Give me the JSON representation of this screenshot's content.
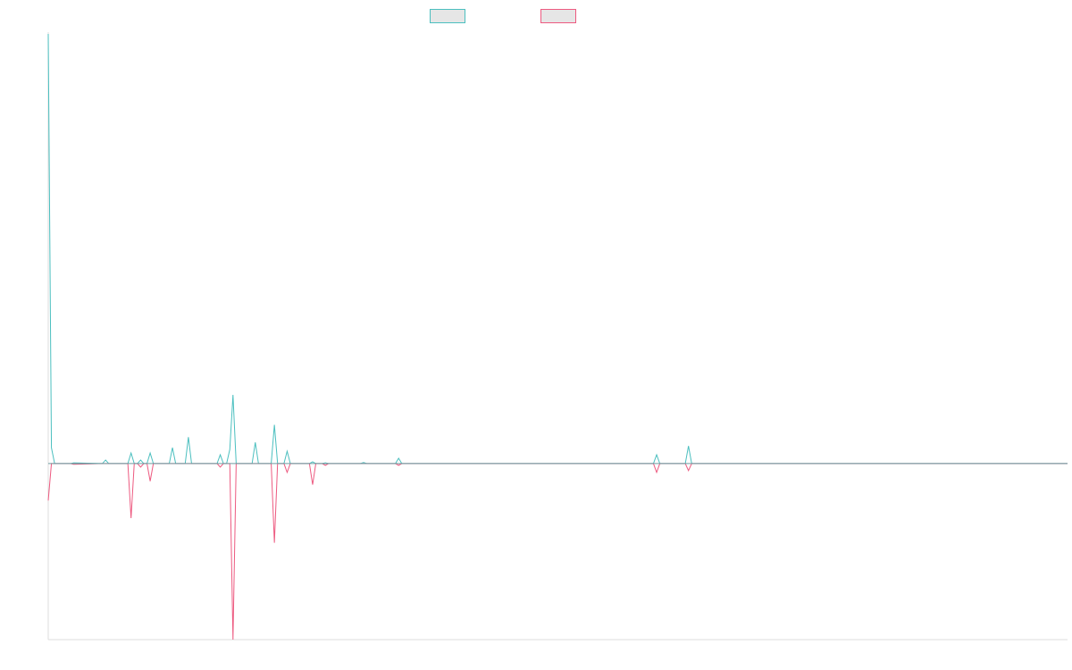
{
  "chart_data": {
    "type": "line",
    "title": "",
    "xlabel": "",
    "ylabel": "",
    "grid": false,
    "legend_position": "top-center",
    "xlim": [
      0,
      320
    ],
    "ylim": [
      -100,
      245
    ],
    "baseline": 0,
    "series": [
      {
        "color": "#4bbfbf",
        "legend_fill": "#e6e6e6",
        "points": [
          [
            0,
            244
          ],
          [
            1,
            9
          ],
          [
            2,
            0
          ],
          [
            7,
            0
          ],
          [
            8,
            0.4
          ],
          [
            17,
            0
          ],
          [
            18,
            2
          ],
          [
            19,
            0
          ],
          [
            25,
            0
          ],
          [
            26,
            6
          ],
          [
            27,
            0
          ],
          [
            28,
            0
          ],
          [
            29,
            2
          ],
          [
            30,
            0
          ],
          [
            31,
            0
          ],
          [
            32,
            6
          ],
          [
            33,
            0
          ],
          [
            38,
            0
          ],
          [
            39,
            9
          ],
          [
            40,
            0
          ],
          [
            43,
            0
          ],
          [
            44,
            15
          ],
          [
            45,
            0
          ],
          [
            53,
            0
          ],
          [
            54,
            5
          ],
          [
            55,
            0
          ],
          [
            56,
            0
          ],
          [
            57,
            8
          ],
          [
            58,
            39
          ],
          [
            59,
            0
          ],
          [
            64,
            0
          ],
          [
            65,
            12
          ],
          [
            66,
            0
          ],
          [
            70,
            0
          ],
          [
            71,
            22
          ],
          [
            72,
            0
          ],
          [
            74,
            0
          ],
          [
            75,
            7
          ],
          [
            76,
            0
          ],
          [
            82,
            0
          ],
          [
            83,
            1
          ],
          [
            84,
            0
          ],
          [
            86,
            0
          ],
          [
            87,
            0.4
          ],
          [
            88,
            0
          ],
          [
            98,
            0
          ],
          [
            99,
            0.6
          ],
          [
            100,
            0
          ],
          [
            109,
            0
          ],
          [
            110,
            3
          ],
          [
            111,
            0
          ],
          [
            190,
            0
          ],
          [
            191,
            5
          ],
          [
            192,
            0
          ],
          [
            200,
            0
          ],
          [
            201,
            10
          ],
          [
            202,
            0
          ],
          [
            320,
            0
          ]
        ]
      },
      {
        "color": "#ed5a80",
        "legend_fill": "#e6e6e6",
        "points": [
          [
            0,
            -21
          ],
          [
            1,
            0
          ],
          [
            7,
            0
          ],
          [
            8,
            -0.4
          ],
          [
            17,
            0
          ],
          [
            18,
            0
          ],
          [
            19,
            0
          ],
          [
            25,
            0
          ],
          [
            26,
            -31
          ],
          [
            27,
            0
          ],
          [
            28,
            0
          ],
          [
            29,
            -2
          ],
          [
            30,
            0
          ],
          [
            31,
            0
          ],
          [
            32,
            -10
          ],
          [
            33,
            0
          ],
          [
            38,
            0
          ],
          [
            43,
            0
          ],
          [
            53,
            0
          ],
          [
            54,
            -2
          ],
          [
            55,
            0
          ],
          [
            57,
            0
          ],
          [
            58,
            -100
          ],
          [
            59,
            0
          ],
          [
            70,
            0
          ],
          [
            71,
            -45
          ],
          [
            72,
            0
          ],
          [
            74,
            0
          ],
          [
            75,
            -5
          ],
          [
            76,
            0
          ],
          [
            82,
            0
          ],
          [
            83,
            -12
          ],
          [
            84,
            0
          ],
          [
            86,
            0
          ],
          [
            87,
            -1
          ],
          [
            88,
            0
          ],
          [
            109,
            0
          ],
          [
            110,
            -1
          ],
          [
            111,
            0
          ],
          [
            190,
            0
          ],
          [
            191,
            -5
          ],
          [
            192,
            0
          ],
          [
            200,
            0
          ],
          [
            201,
            -4
          ],
          [
            202,
            0
          ],
          [
            320,
            0
          ]
        ]
      }
    ]
  }
}
